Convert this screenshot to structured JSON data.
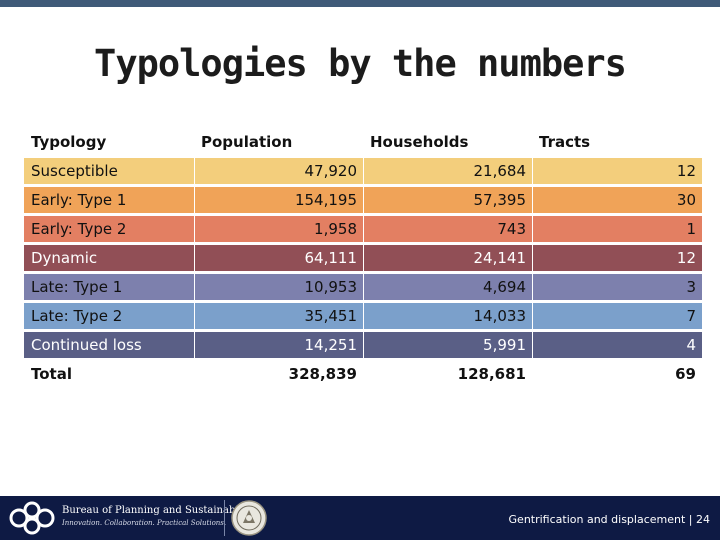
{
  "slide": {
    "title": "Typologies by the numbers"
  },
  "table": {
    "headers": [
      "Typology",
      "Population",
      "Households",
      "Tracts"
    ],
    "rows": [
      {
        "typology": "Susceptible",
        "population": "47,920",
        "households": "21,684",
        "tracts": "12",
        "color": "#f3ce7c"
      },
      {
        "typology": "Early: Type 1",
        "population": "154,195",
        "households": "57,395",
        "tracts": "30",
        "color": "#f0a358"
      },
      {
        "typology": "Early: Type 2",
        "population": "1,958",
        "households": "743",
        "tracts": "1",
        "color": "#e37f62"
      },
      {
        "typology": "Dynamic",
        "population": "64,111",
        "households": "24,141",
        "tracts": "12",
        "color": "#914f56"
      },
      {
        "typology": "Late: Type 1",
        "population": "10,953",
        "households": "4,694",
        "tracts": "3",
        "color": "#7d80ad"
      },
      {
        "typology": "Late: Type 2",
        "population": "35,451",
        "households": "14,033",
        "tracts": "7",
        "color": "#7ba0cb"
      },
      {
        "typology": "Continued loss",
        "population": "14,251",
        "households": "5,991",
        "tracts": "4",
        "color": "#5a5f86"
      }
    ],
    "total": {
      "typology": "Total",
      "population": "328,839",
      "households": "128,681",
      "tracts": "69"
    }
  },
  "footer": {
    "org_name": "Bureau of Planning and Sustainability",
    "tagline": "Innovation. Collaboration. Practical Solutions.",
    "text": "Gentrification and displacement | 24",
    "background": "#0e1a44"
  }
}
